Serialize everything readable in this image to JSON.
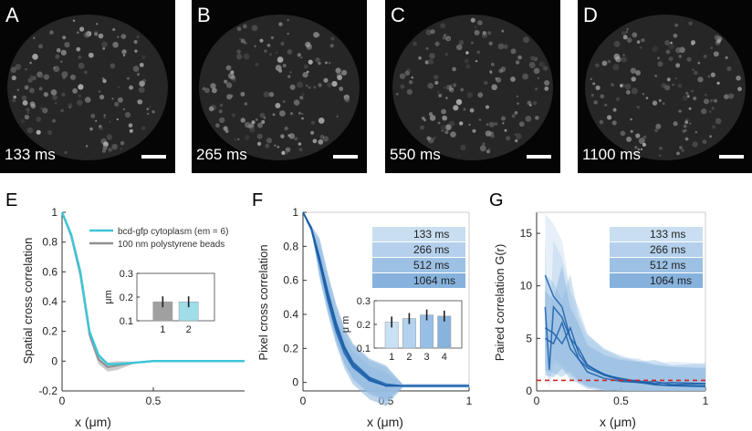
{
  "micrographs": [
    {
      "label": "A",
      "time": "133 ms"
    },
    {
      "label": "B",
      "time": "265 ms"
    },
    {
      "label": "C",
      "time": "550 ms"
    },
    {
      "label": "D",
      "time": "1100 ms"
    }
  ],
  "colors": {
    "cyan": "#3fc6d8",
    "gray": "#8f8f8f",
    "blue_dark": "#1a5ea8",
    "blue_light": "#9fc6e6",
    "red": "#d22424"
  },
  "chart_data": [
    {
      "panel": "E",
      "type": "line",
      "ylabel": "Spatial cross correlation",
      "xlabel": "x (μm)",
      "xlim": [
        0,
        1
      ],
      "ylim": [
        -0.2,
        1
      ],
      "xticks": [
        "0",
        "0.5"
      ],
      "yticks": [
        "-0.2",
        "0",
        "0.2",
        "0.4",
        "0.6",
        "0.8",
        "1"
      ],
      "series": [
        {
          "name": "bcd-gfp cytoplasm (em = 6)",
          "x": [
            0,
            0.05,
            0.1,
            0.15,
            0.2,
            0.25,
            0.3,
            0.4,
            0.5,
            0.6,
            0.7,
            0.8,
            0.9,
            1.0
          ],
          "y": [
            1,
            0.85,
            0.6,
            0.2,
            0.04,
            -0.02,
            -0.02,
            -0.01,
            0,
            0,
            0,
            0,
            0,
            0
          ]
        },
        {
          "name": "100 nm polystyrene beads",
          "x": [
            0,
            0.05,
            0.1,
            0.15,
            0.2,
            0.25,
            0.3,
            0.4,
            0.5,
            0.6,
            0.7,
            0.8,
            0.9,
            1.0
          ],
          "y": [
            1,
            0.84,
            0.58,
            0.18,
            0.01,
            -0.04,
            -0.03,
            -0.01,
            0,
            0,
            0,
            0,
            0,
            0
          ]
        }
      ],
      "inset": {
        "type": "bar",
        "ylabel": "μm",
        "categories": [
          "1",
          "2"
        ],
        "values": [
          0.18,
          0.18
        ],
        "ylim": [
          0.1,
          0.3
        ],
        "yticks": [
          "0.1",
          "0.2",
          "0.3"
        ]
      }
    },
    {
      "panel": "F",
      "type": "line",
      "ylabel": "Pixel cross correlation",
      "xlabel": "x (μm)",
      "xlim": [
        0,
        1
      ],
      "ylim": [
        -0.05,
        1
      ],
      "xticks": [
        "0",
        "0.5",
        "1"
      ],
      "yticks": [
        "0",
        "0.2",
        "0.4",
        "0.6",
        "0.8",
        "1"
      ],
      "legend": [
        "133 ms",
        "266 ms",
        "512 ms",
        "1064 ms"
      ],
      "series": [
        {
          "name": "133 ms",
          "x": [
            0,
            0.05,
            0.1,
            0.15,
            0.2,
            0.25,
            0.3,
            0.4,
            0.5,
            0.6,
            0.8,
            1.0
          ],
          "y": [
            1,
            0.9,
            0.7,
            0.48,
            0.3,
            0.17,
            0.09,
            0.01,
            -0.02,
            -0.02,
            -0.02,
            -0.02
          ]
        },
        {
          "name": "266 ms",
          "x": [
            0,
            0.05,
            0.1,
            0.15,
            0.2,
            0.25,
            0.3,
            0.4,
            0.5,
            0.6,
            0.8,
            1.0
          ],
          "y": [
            1,
            0.9,
            0.71,
            0.5,
            0.32,
            0.19,
            0.1,
            0.02,
            -0.02,
            -0.02,
            -0.02,
            -0.02
          ]
        },
        {
          "name": "512 ms",
          "x": [
            0,
            0.05,
            0.1,
            0.15,
            0.2,
            0.25,
            0.3,
            0.4,
            0.5,
            0.6,
            0.8,
            1.0
          ],
          "y": [
            1,
            0.91,
            0.73,
            0.53,
            0.35,
            0.21,
            0.12,
            0.03,
            -0.01,
            -0.02,
            -0.02,
            -0.02
          ]
        },
        {
          "name": "1064 ms",
          "x": [
            0,
            0.05,
            0.1,
            0.15,
            0.2,
            0.25,
            0.3,
            0.4,
            0.5,
            0.6,
            0.8,
            1.0
          ],
          "y": [
            1,
            0.91,
            0.73,
            0.52,
            0.34,
            0.2,
            0.11,
            0.02,
            -0.02,
            -0.02,
            -0.02,
            -0.02
          ]
        }
      ],
      "inset": {
        "type": "bar",
        "ylabel": "μ m",
        "categories": [
          "1",
          "2",
          "3",
          "4"
        ],
        "values": [
          0.21,
          0.225,
          0.24,
          0.235
        ],
        "ylim": [
          0.1,
          0.3
        ],
        "yticks": [
          "0.1",
          "0.2",
          "0.3"
        ]
      }
    },
    {
      "panel": "G",
      "type": "line",
      "ylabel": "Paired correlation G(r)",
      "xlabel": "x (μm)",
      "xlim": [
        0,
        1
      ],
      "ylim": [
        0,
        17
      ],
      "xticks": [
        "0",
        "0.5",
        "1"
      ],
      "yticks": [
        "0",
        "5",
        "10",
        "15"
      ],
      "legend": [
        "133 ms",
        "266 ms",
        "512 ms",
        "1064 ms"
      ],
      "reference_line": 1,
      "series": [
        {
          "name": "133 ms",
          "x": [
            0.05,
            0.1,
            0.15,
            0.2,
            0.25,
            0.3,
            0.4,
            0.5,
            0.6,
            0.7,
            0.8,
            1.0
          ],
          "y": [
            11,
            9,
            8,
            5,
            3,
            2.2,
            1.5,
            1.2,
            0.9,
            0.7,
            0.8,
            0.7
          ]
        },
        {
          "name": "266 ms",
          "x": [
            0.05,
            0.075,
            0.1,
            0.15,
            0.2,
            0.25,
            0.3,
            0.4,
            0.5,
            0.6,
            0.7,
            0.8,
            1.0
          ],
          "y": [
            8,
            2,
            8,
            7,
            5,
            4,
            2.5,
            1.5,
            1,
            1,
            0.6,
            0.5,
            0.5
          ]
        },
        {
          "name": "512 ms",
          "x": [
            0.05,
            0.1,
            0.15,
            0.2,
            0.25,
            0.3,
            0.4,
            0.5,
            0.6,
            0.7,
            0.8,
            1.0
          ],
          "y": [
            6,
            5.5,
            4.5,
            6,
            3.5,
            2.4,
            1.6,
            1.1,
            0.8,
            0.9,
            0.6,
            0.7
          ]
        },
        {
          "name": "1064 ms",
          "x": [
            0.05,
            0.1,
            0.15,
            0.2,
            0.25,
            0.3,
            0.4,
            0.5,
            0.6,
            0.7,
            0.8,
            1.0
          ],
          "y": [
            5,
            4.5,
            6.5,
            4,
            3,
            1.8,
            1.2,
            0.9,
            0.8,
            0.6,
            0.5,
            0.4
          ]
        }
      ]
    }
  ]
}
